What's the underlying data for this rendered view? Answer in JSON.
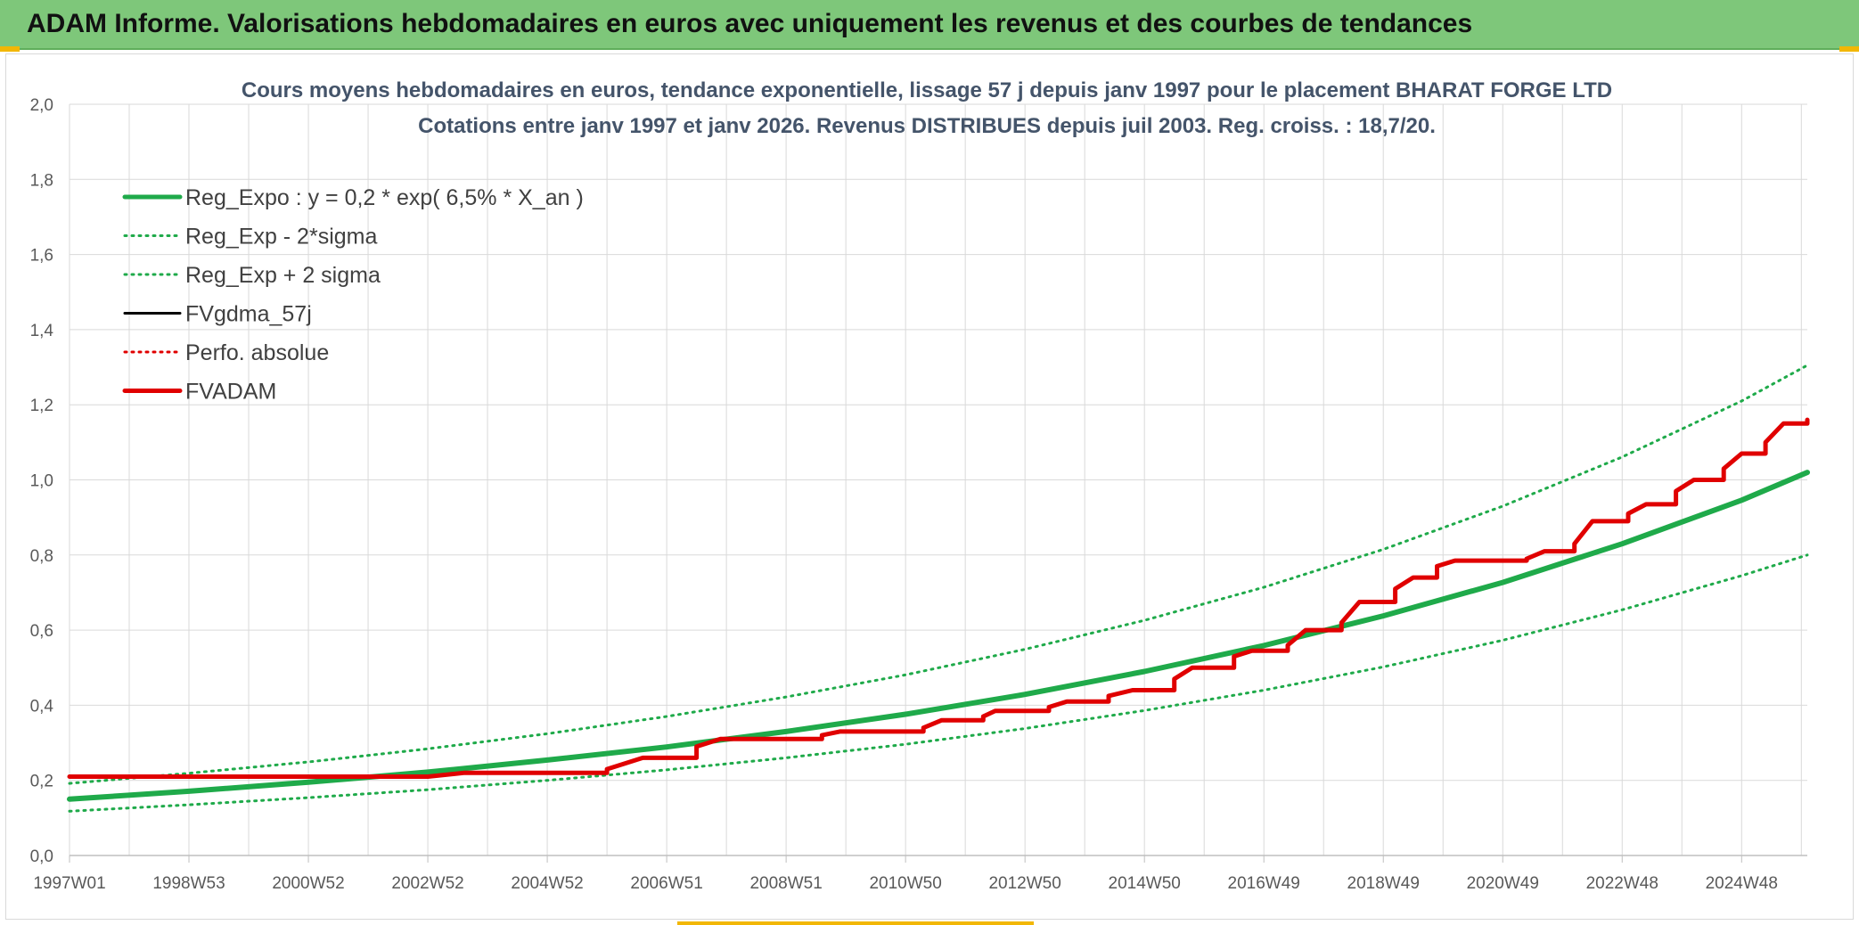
{
  "banner": {
    "title": "ADAM Informe. Valorisations hebdomadaires en euros avec uniquement les revenus et des courbes de tendances"
  },
  "colors": {
    "banner_bg": "#7ec77a",
    "green": "#1faa4a",
    "red": "#e00000",
    "black": "#000000",
    "grid": "#d9d9d9"
  },
  "chart_data": {
    "type": "line",
    "title": "Cours moyens hebdomadaires en euros, tendance exponentielle, lissage 57 j depuis janv 1997 pour le placement BHARAT FORGE LTD",
    "subtitle": "Cotations entre janv 1997 et janv 2026. Revenus DISTRIBUES depuis juil 2003. Reg. croiss. : 18,7/20.",
    "xlabel": "",
    "ylabel": "",
    "x_range_years": [
      1997.0,
      2026.1
    ],
    "ylim": [
      0,
      2.0
    ],
    "yticks": [
      "0,0",
      "0,2",
      "0,4",
      "0,6",
      "0,8",
      "1,0",
      "1,2",
      "1,4",
      "1,6",
      "1,8",
      "2,0"
    ],
    "xtick_labels": [
      "1997W01",
      "1998W53",
      "2000W52",
      "2002W52",
      "2004W52",
      "2006W51",
      "2008W51",
      "2010W50",
      "2012W50",
      "2014W50",
      "2016W49",
      "2018W49",
      "2020W49",
      "2022W48",
      "2024W48"
    ],
    "xtick_years": [
      1997.0,
      1999.0,
      2001.0,
      2003.0,
      2005.0,
      2007.0,
      2009.0,
      2011.0,
      2013.0,
      2015.0,
      2017.0,
      2019.0,
      2021.0,
      2023.0,
      2025.0
    ],
    "grid": true,
    "legend_position": "top-left",
    "legend": [
      {
        "label": "Reg_Expo : y = 0,2 * exp( 6,5% *  X_an )",
        "color": "#1faa4a",
        "style": "solid",
        "width": 6
      },
      {
        "label": "Reg_Exp - 2*sigma",
        "color": "#1faa4a",
        "style": "dotted",
        "width": 3
      },
      {
        "label": "Reg_Exp + 2 sigma",
        "color": "#1faa4a",
        "style": "dotted",
        "width": 3
      },
      {
        "label": "FVgdma_57j",
        "color": "#000000",
        "style": "solid",
        "width": 3
      },
      {
        "label": "Perfo. absolue",
        "color": "#e00000",
        "style": "dotted",
        "width": 3
      },
      {
        "label": "FVADAM",
        "color": "#e00000",
        "style": "solid",
        "width": 5
      }
    ],
    "series": [
      {
        "name": "Reg_Expo : y = 0,2 * exp( 6,5% *  X_an )",
        "x": [
          1997.0,
          1999.0,
          2001.0,
          2003.0,
          2005.0,
          2007.0,
          2009.0,
          2011.0,
          2013.0,
          2015.0,
          2017.0,
          2019.0,
          2021.0,
          2023.0,
          2025.0,
          2026.1
        ],
        "values": [
          0.15,
          0.171,
          0.195,
          0.222,
          0.254,
          0.289,
          0.33,
          0.376,
          0.429,
          0.49,
          0.559,
          0.638,
          0.727,
          0.83,
          0.946,
          1.02
        ]
      },
      {
        "name": "Reg_Exp - 2*sigma",
        "x": [
          1997.0,
          1999.0,
          2001.0,
          2003.0,
          2005.0,
          2007.0,
          2009.0,
          2011.0,
          2013.0,
          2015.0,
          2017.0,
          2019.0,
          2021.0,
          2023.0,
          2025.0,
          2026.1
        ],
        "values": [
          0.118,
          0.135,
          0.154,
          0.175,
          0.2,
          0.228,
          0.26,
          0.296,
          0.338,
          0.386,
          0.44,
          0.502,
          0.573,
          0.654,
          0.745,
          0.8
        ]
      },
      {
        "name": "Reg_Exp + 2 sigma",
        "x": [
          1997.0,
          1999.0,
          2001.0,
          2003.0,
          2005.0,
          2007.0,
          2009.0,
          2011.0,
          2013.0,
          2015.0,
          2017.0,
          2019.0,
          2021.0,
          2023.0,
          2025.0,
          2026.1
        ],
        "values": [
          0.192,
          0.219,
          0.249,
          0.284,
          0.324,
          0.37,
          0.422,
          0.481,
          0.549,
          0.626,
          0.714,
          0.815,
          0.93,
          1.061,
          1.21,
          1.305
        ]
      },
      {
        "name": "FVgdma_57j",
        "x": [
          1997.0,
          2000.0,
          2003.0,
          2003.6,
          2006.0,
          2006.6,
          2007.5,
          2007.9,
          2009.6,
          2009.9,
          2011.3,
          2011.6,
          2012.3,
          2012.5,
          2013.4,
          2013.7,
          2014.4,
          2014.8,
          2015.5,
          2015.8,
          2016.5,
          2016.8,
          2017.4,
          2017.7,
          2018.3,
          2018.6,
          2019.2,
          2019.5,
          2019.9,
          2020.2,
          2021.4,
          2021.7,
          2022.2,
          2022.5,
          2023.1,
          2023.4,
          2023.9,
          2024.2,
          2024.7,
          2025.0,
          2025.4,
          2025.7,
          2026.1
        ],
        "values": [
          0.21,
          0.21,
          0.21,
          0.22,
          0.23,
          0.26,
          0.29,
          0.31,
          0.32,
          0.33,
          0.34,
          0.36,
          0.37,
          0.385,
          0.395,
          0.41,
          0.425,
          0.44,
          0.47,
          0.5,
          0.53,
          0.545,
          0.56,
          0.6,
          0.62,
          0.675,
          0.71,
          0.74,
          0.77,
          0.785,
          0.79,
          0.81,
          0.83,
          0.89,
          0.91,
          0.935,
          0.97,
          1.0,
          1.03,
          1.07,
          1.1,
          1.15,
          1.16
        ]
      },
      {
        "name": "Perfo. absolue",
        "x": [
          1997.0,
          2000.0,
          2003.0,
          2003.6,
          2006.0,
          2006.6,
          2007.5,
          2007.9,
          2009.6,
          2009.9,
          2011.3,
          2011.6,
          2012.3,
          2012.5,
          2013.4,
          2013.7,
          2014.4,
          2014.8,
          2015.5,
          2015.8,
          2016.5,
          2016.8,
          2017.4,
          2017.7,
          2018.3,
          2018.6,
          2019.2,
          2019.5,
          2019.9,
          2020.2,
          2021.4,
          2021.7,
          2022.2,
          2022.5,
          2023.1,
          2023.4,
          2023.9,
          2024.2,
          2024.7,
          2025.0,
          2025.4,
          2025.7,
          2026.1
        ],
        "values": [
          0.21,
          0.21,
          0.21,
          0.22,
          0.23,
          0.26,
          0.29,
          0.31,
          0.32,
          0.33,
          0.34,
          0.36,
          0.37,
          0.385,
          0.395,
          0.41,
          0.425,
          0.44,
          0.47,
          0.5,
          0.53,
          0.545,
          0.56,
          0.6,
          0.62,
          0.675,
          0.71,
          0.74,
          0.77,
          0.785,
          0.79,
          0.81,
          0.83,
          0.89,
          0.91,
          0.935,
          0.97,
          1.0,
          1.03,
          1.07,
          1.1,
          1.15,
          1.16
        ]
      },
      {
        "name": "FVADAM",
        "x": [
          1997.0,
          2000.0,
          2003.0,
          2003.6,
          2006.0,
          2006.6,
          2007.5,
          2007.9,
          2009.6,
          2009.9,
          2011.3,
          2011.6,
          2012.3,
          2012.5,
          2013.4,
          2013.7,
          2014.4,
          2014.8,
          2015.5,
          2015.8,
          2016.5,
          2016.8,
          2017.4,
          2017.7,
          2018.3,
          2018.6,
          2019.2,
          2019.5,
          2019.9,
          2020.2,
          2021.4,
          2021.7,
          2022.2,
          2022.5,
          2023.1,
          2023.4,
          2023.9,
          2024.2,
          2024.7,
          2025.0,
          2025.4,
          2025.7,
          2026.1
        ],
        "values": [
          0.21,
          0.21,
          0.21,
          0.22,
          0.23,
          0.26,
          0.29,
          0.31,
          0.32,
          0.33,
          0.34,
          0.36,
          0.37,
          0.385,
          0.395,
          0.41,
          0.425,
          0.44,
          0.47,
          0.5,
          0.53,
          0.545,
          0.56,
          0.6,
          0.62,
          0.675,
          0.71,
          0.74,
          0.77,
          0.785,
          0.79,
          0.81,
          0.83,
          0.89,
          0.91,
          0.935,
          0.97,
          1.0,
          1.03,
          1.07,
          1.1,
          1.15,
          1.16
        ]
      }
    ]
  }
}
